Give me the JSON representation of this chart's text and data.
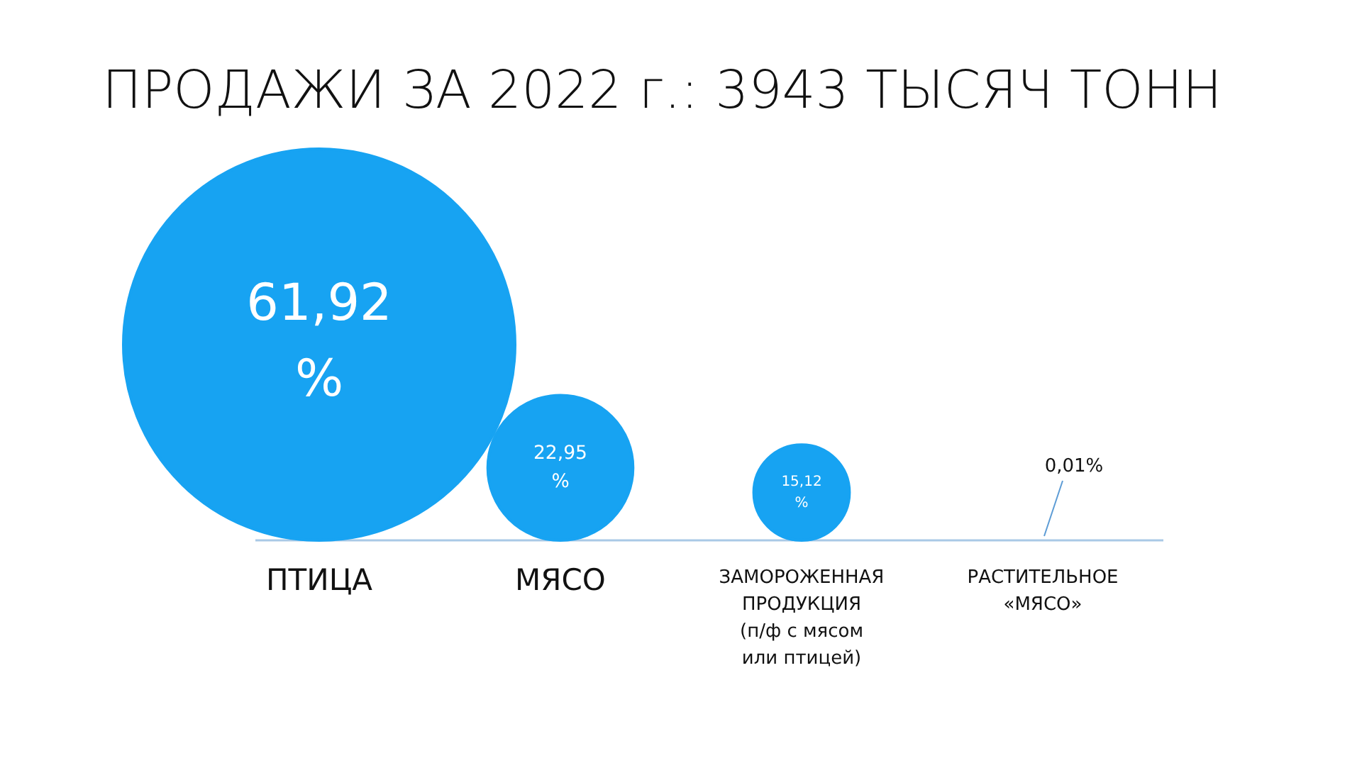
{
  "chart_data": {
    "type": "other",
    "title": "ПРОДАЖИ ЗА 2022 г.: 3943 ТЫСЯЧ ТОНН",
    "categories": [
      "ПТИЦА",
      "МЯСО",
      "ЗАМОРОЖЕННАЯ\nПРОДУКЦИЯ\n(п/ф с мясом\nили птицей)",
      "РАСТИТЕЛЬНОЕ\n«МЯСО»"
    ],
    "values": [
      61.92,
      22.95,
      15.12,
      0.01
    ],
    "value_labels": [
      "61,92 %",
      "22,95 %",
      "15,12 %",
      "0,01%"
    ],
    "color": "#17a3f2"
  }
}
